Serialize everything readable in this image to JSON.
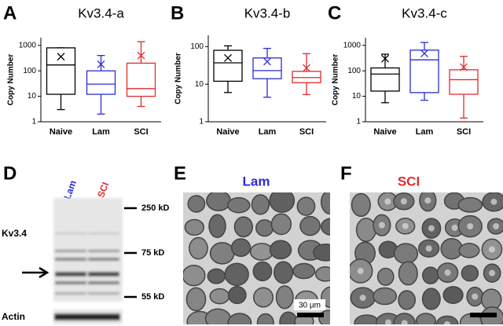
{
  "chart_data": [
    {
      "type": "box",
      "panel": "A",
      "title": "Kv3.4-a",
      "y_label": "Copy Number",
      "log_scale": true,
      "categories": [
        "Naive",
        "Lam",
        "SCI"
      ],
      "ylim": [
        1,
        2000
      ],
      "yticks": [
        1,
        10,
        100,
        1000
      ],
      "boxes": [
        {
          "color": "#000000",
          "whisker_low": 3,
          "q1": 12,
          "median": 170,
          "q3": 800,
          "whisker_high": 800,
          "mean": 360
        },
        {
          "color": "#2b2bd6",
          "whisker_low": 2,
          "q1": 12,
          "median": 30,
          "q3": 100,
          "whisker_high": 400,
          "mean": 180
        },
        {
          "color": "#e02b2b",
          "whisker_low": 4,
          "q1": 10,
          "median": 20,
          "q3": 200,
          "whisker_high": 1400,
          "mean": 400
        }
      ]
    },
    {
      "type": "box",
      "panel": "B",
      "title": "Kv3.4-b",
      "y_label": "Copy Number",
      "log_scale": true,
      "categories": [
        "Naive",
        "Lam",
        "SCI"
      ],
      "ylim": [
        1,
        200
      ],
      "yticks": [
        1,
        10,
        100
      ],
      "boxes": [
        {
          "color": "#000000",
          "whisker_low": 6,
          "q1": 12,
          "median": 37,
          "q3": 80,
          "whisker_high": 105,
          "mean": 50
        },
        {
          "color": "#2b2bd6",
          "whisker_low": 4.5,
          "q1": 14,
          "median": 23,
          "q3": 50,
          "whisker_high": 90,
          "mean": 40
        },
        {
          "color": "#e02b2b",
          "whisker_low": 5.3,
          "q1": 11,
          "median": 15,
          "q3": 22,
          "whisker_high": 65,
          "mean": 27
        }
      ]
    },
    {
      "type": "box",
      "panel": "C",
      "title": "Kv3.4-c",
      "y_label": "Copy Number",
      "log_scale": true,
      "categories": [
        "Naive",
        "Lam",
        "SCI"
      ],
      "ylim": [
        1,
        2000
      ],
      "yticks": [
        1,
        10,
        100,
        1000
      ],
      "boxes": [
        {
          "color": "#000000",
          "whisker_low": 5.6,
          "q1": 16,
          "median": 75,
          "q3": 130,
          "whisker_high": 450,
          "mean": 300
        },
        {
          "color": "#2b2bd6",
          "whisker_low": 7,
          "q1": 14,
          "median": 270,
          "q3": 650,
          "whisker_high": 1300,
          "mean": 480
        },
        {
          "color": "#e02b2b",
          "whisker_low": 1.4,
          "q1": 12,
          "median": 45,
          "q3": 110,
          "whisker_high": 370,
          "mean": 140
        }
      ]
    }
  ],
  "blot": {
    "panel": "D",
    "lanes": [
      {
        "label": "Lam",
        "color": "#2b2bd6"
      },
      {
        "label": "SCI",
        "color": "#e02b2b"
      }
    ],
    "protein": "Kv3.4",
    "loading": "Actin",
    "markers": [
      "250 kD",
      "75 kD",
      "55 kD"
    ]
  },
  "micrographs": [
    {
      "panel": "E",
      "label": "Lam",
      "color": "#2b2bd6",
      "scale": "30 µm"
    },
    {
      "panel": "F",
      "label": "SCI",
      "color": "#e02b2b"
    }
  ]
}
